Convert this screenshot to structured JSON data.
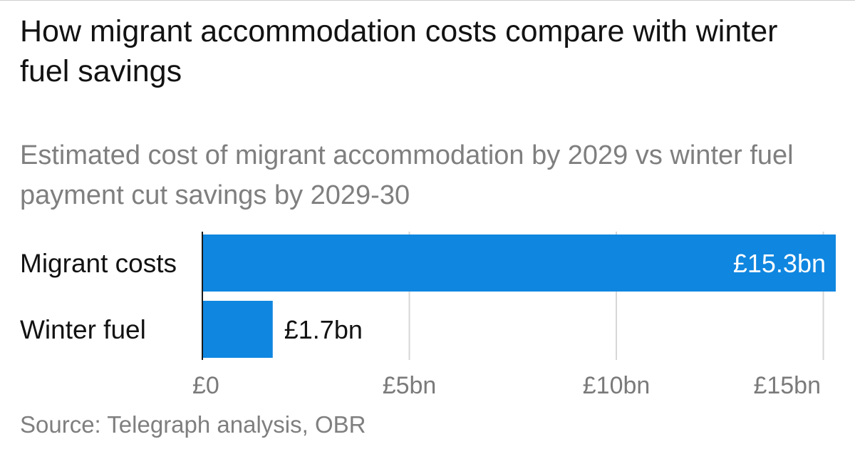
{
  "title": "How migrant accommodation costs compare with winter fuel savings",
  "subtitle": "Estimated cost of migrant accommodation by 2029 vs winter fuel payment cut savings by 2029-30",
  "source": "Source: Telegraph analysis, OBR",
  "colors": {
    "bar": "#0f86e0",
    "grid": "#d6d6d6",
    "axis": "#1a1a1a"
  },
  "chart_data": {
    "type": "bar",
    "orientation": "horizontal",
    "categories": [
      "Migrant costs",
      "Winter fuel"
    ],
    "values": [
      15.3,
      1.7
    ],
    "value_labels": [
      "£15.3bn",
      "£1.7bn"
    ],
    "units": "£bn",
    "xlim": [
      0,
      15.3
    ],
    "ticks": [
      0,
      5,
      10,
      15
    ],
    "tick_labels": [
      "£0",
      "£5bn",
      "£10bn",
      "£15bn"
    ],
    "grid": true,
    "legend": "none"
  }
}
